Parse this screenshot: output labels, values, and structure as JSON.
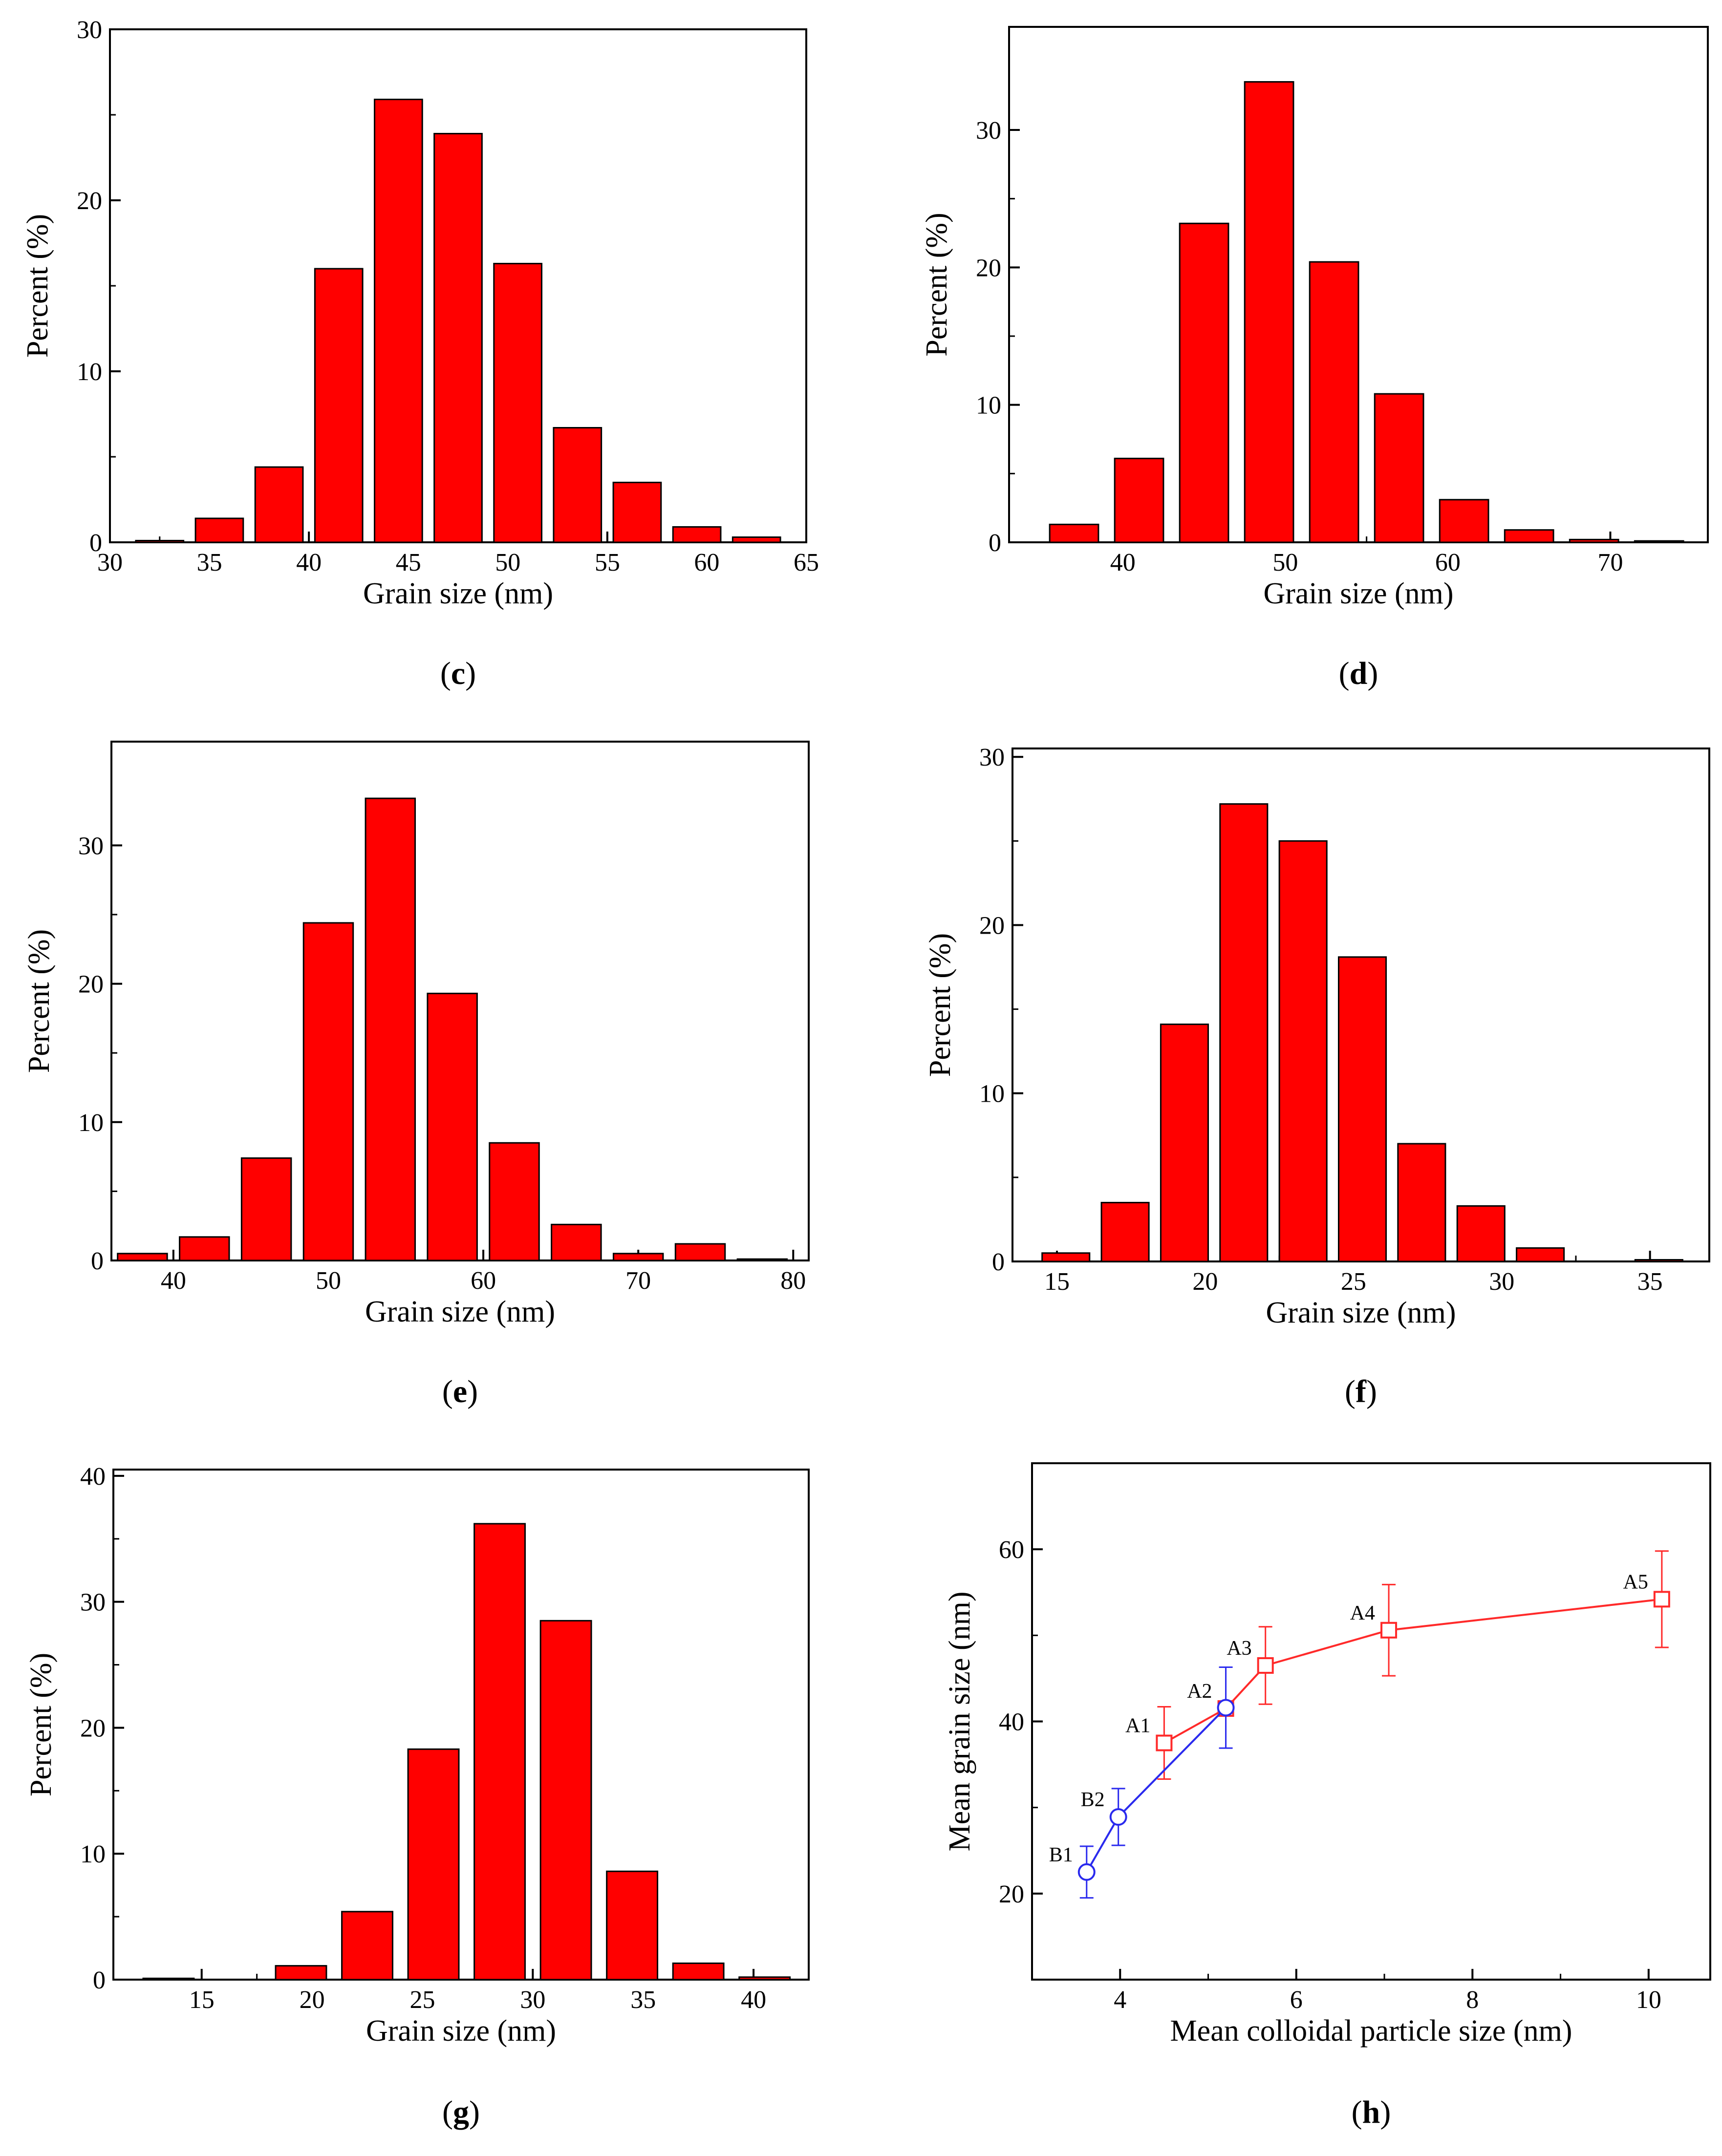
{
  "figure": {
    "colors": {
      "bar": "#ff0000",
      "series_a": "#ff2a2a",
      "series_b": "#2a2aee",
      "axis": "#000000"
    }
  },
  "chart_data": [
    {
      "id": "c",
      "type": "bar",
      "panel_label": "c",
      "xlabel": "Grain size (nm)",
      "ylabel": "Percent (%)",
      "xlim": [
        30,
        65
      ],
      "ylim": [
        0,
        30
      ],
      "xticks": [
        30,
        35,
        40,
        45,
        50,
        55,
        60,
        65
      ],
      "yticks": [
        0,
        10,
        20,
        30
      ],
      "bar_width": 2.4,
      "x": [
        32.5,
        35.5,
        38.5,
        41.5,
        44.5,
        47.5,
        50.5,
        53.5,
        56.5,
        59.5,
        62.5
      ],
      "values": [
        0.1,
        1.4,
        4.4,
        16.0,
        25.9,
        23.9,
        16.3,
        6.7,
        3.5,
        0.9,
        0.3
      ]
    },
    {
      "id": "d",
      "type": "bar",
      "panel_label": "d",
      "xlabel": "Grain size (nm)",
      "ylabel": "Percent (%)",
      "xlim": [
        33,
        76
      ],
      "ylim": [
        0,
        37.5
      ],
      "xticks": [
        40,
        50,
        60,
        70
      ],
      "yticks": [
        0,
        10,
        20,
        30
      ],
      "bar_width": 3.0,
      "x": [
        37,
        41,
        45,
        49,
        53,
        57,
        61,
        65,
        69,
        73
      ],
      "values": [
        1.3,
        6.1,
        23.2,
        33.5,
        20.4,
        10.8,
        3.1,
        0.9,
        0.2,
        0.1
      ]
    },
    {
      "id": "e",
      "type": "bar",
      "panel_label": "e",
      "xlabel": "Grain size (nm)",
      "ylabel": "Percent (%)",
      "xlim": [
        36,
        81
      ],
      "ylim": [
        0,
        37.5
      ],
      "xticks": [
        40,
        50,
        60,
        70,
        80
      ],
      "yticks": [
        0,
        10,
        20,
        30
      ],
      "bar_width": 3.2,
      "x": [
        38,
        42,
        46,
        50,
        54,
        58,
        62,
        66,
        70,
        74,
        78
      ],
      "values": [
        0.5,
        1.7,
        7.4,
        24.4,
        33.4,
        19.3,
        8.5,
        2.6,
        0.5,
        1.2,
        0.1
      ]
    },
    {
      "id": "f",
      "type": "bar",
      "panel_label": "f",
      "xlabel": "Grain size (nm)",
      "ylabel": "Percent (%)",
      "xlim": [
        13.5,
        37
      ],
      "ylim": [
        0,
        30.5
      ],
      "xticks": [
        15,
        20,
        25,
        30,
        35
      ],
      "yticks": [
        0,
        10,
        20,
        30
      ],
      "bar_width": 1.6,
      "x": [
        15.3,
        17.3,
        19.3,
        21.3,
        23.3,
        25.3,
        27.3,
        29.3,
        31.3,
        33.3,
        35.3
      ],
      "values": [
        0.5,
        3.5,
        14.1,
        27.2,
        25.0,
        18.1,
        7.0,
        3.3,
        0.8,
        0.0,
        0.1
      ]
    },
    {
      "id": "g",
      "type": "bar",
      "panel_label": "g",
      "xlabel": "Grain size (nm)",
      "ylabel": "Percent (%)",
      "xlim": [
        11,
        42.5
      ],
      "ylim": [
        0,
        40.5
      ],
      "xticks": [
        15,
        20,
        25,
        30,
        35,
        40
      ],
      "yticks": [
        0,
        10,
        20,
        30,
        40
      ],
      "bar_width": 2.3,
      "x": [
        13.5,
        16.5,
        19.5,
        22.5,
        25.5,
        28.5,
        31.5,
        34.5,
        37.5,
        40.5
      ],
      "values": [
        0.1,
        0.0,
        1.1,
        5.4,
        18.3,
        36.2,
        28.5,
        8.6,
        1.3,
        0.2
      ]
    },
    {
      "id": "h",
      "type": "line",
      "panel_label": "h",
      "xlabel": "Mean colloidal particle size (nm)",
      "ylabel": "Mean grain size (nm)",
      "xlim": [
        3,
        10.7
      ],
      "ylim": [
        10,
        70
      ],
      "xticks": [
        4,
        6,
        8,
        10
      ],
      "yticks": [
        20,
        40,
        60
      ],
      "series": [
        {
          "name": "A",
          "color": "#ff2a2a",
          "marker": "square",
          "x": [
            4.5,
            5.2,
            5.65,
            7.05,
            10.15
          ],
          "y": [
            37.5,
            41.5,
            46.5,
            50.6,
            54.2
          ],
          "err": [
            4.2,
            0,
            4.5,
            5.3,
            5.6
          ],
          "labels": [
            "A1",
            "A2",
            "A3",
            "A4",
            "A5"
          ]
        },
        {
          "name": "B",
          "color": "#2a2aee",
          "marker": "circle",
          "x": [
            3.62,
            3.98,
            5.2
          ],
          "y": [
            22.5,
            28.9,
            41.6
          ],
          "err": [
            3.0,
            3.3,
            4.7
          ],
          "labels": [
            "B1",
            "B2",
            ""
          ]
        }
      ]
    }
  ]
}
